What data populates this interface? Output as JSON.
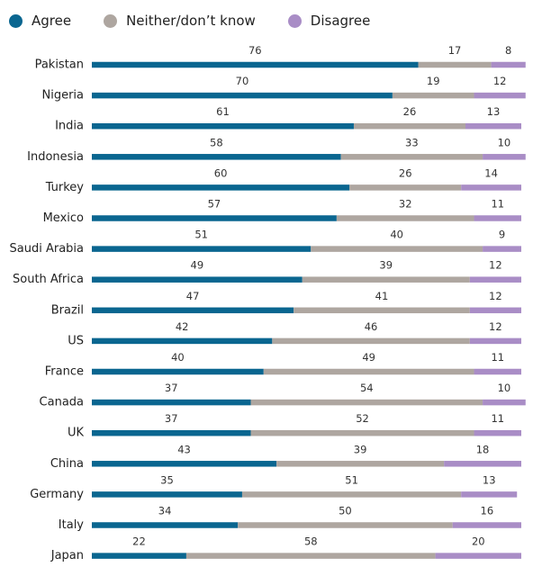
{
  "chart_data": {
    "type": "bar",
    "stacked": true,
    "orientation": "horizontal",
    "legend_position": "top-left",
    "series": [
      {
        "name": "Agree",
        "color": "#0a6690",
        "values": [
          76,
          70,
          61,
          58,
          60,
          57,
          51,
          49,
          47,
          42,
          40,
          37,
          37,
          43,
          35,
          34,
          22
        ]
      },
      {
        "name": "Neither/don’t know",
        "color": "#aea6a0",
        "values": [
          17,
          19,
          26,
          33,
          26,
          32,
          40,
          39,
          41,
          46,
          49,
          54,
          52,
          39,
          51,
          50,
          58
        ]
      },
      {
        "name": "Disagree",
        "color": "#a98dc6",
        "values": [
          8,
          12,
          13,
          10,
          14,
          11,
          9,
          12,
          12,
          12,
          11,
          10,
          11,
          18,
          13,
          16,
          20
        ]
      }
    ],
    "categories": [
      "Pakistan",
      "Nigeria",
      "India",
      "Indonesia",
      "Turkey",
      "Mexico",
      "Saudi Arabia",
      "South Africa",
      "Brazil",
      "US",
      "France",
      "Canada",
      "UK",
      "China",
      "Germany",
      "Italy",
      "Japan"
    ]
  }
}
